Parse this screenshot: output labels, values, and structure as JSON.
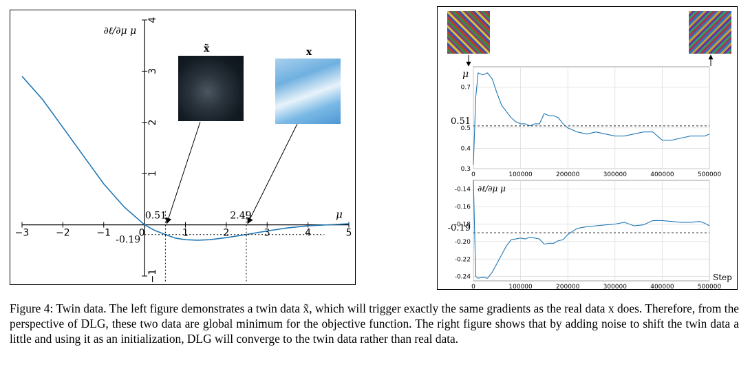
{
  "left_figure": {
    "ylabel": "∂ℓ/∂μ μ",
    "xlabel": "μ",
    "annotations": {
      "x1": "0.51",
      "x2": "2.49",
      "ymin": "-0.19"
    },
    "thumb_twin_label": "x̃",
    "thumb_real_label": "x",
    "x_ticks": [
      "−3",
      "−2",
      "−1",
      "0",
      "1",
      "2",
      "3",
      "4",
      "5"
    ],
    "y_ticks": [
      "−1",
      "1",
      "2",
      "3",
      "4"
    ]
  },
  "right_figure": {
    "top_plot": {
      "ylabel": "μ",
      "hline_label": "0.51",
      "y_ticks": [
        "0.3",
        "0.4",
        "0.5",
        "0.7"
      ],
      "x_ticks": [
        "0",
        "100000",
        "200000",
        "300000",
        "400000",
        "500000"
      ]
    },
    "bottom_plot": {
      "ylabel": "∂ℓ/∂μ μ",
      "hline_label": "-0.19",
      "y_ticks": [
        "-0.14",
        "-0.16",
        "-0.18",
        "-0.20",
        "-0.22",
        "-0.24"
      ],
      "x_ticks": [
        "0",
        "100000",
        "200000",
        "300000",
        "400000",
        "500000"
      ],
      "xlabel": "Step"
    }
  },
  "caption": {
    "text": "Figure 4: Twin data. The left figure demonstrates a twin data x̃, which will trigger exactly the same gradients as the real data x does. Therefore, from the perspective of DLG, these two data are global minimum for the objective function. The right figure shows that by adding noise to shift the twin data a little and using it as an initialization, DLG will converge to the twin data rather than real data."
  },
  "chart_data": [
    {
      "type": "line",
      "xlabel": "μ",
      "ylabel": "∂ℓ/∂μ μ",
      "xlim": [
        -3,
        5
      ],
      "ylim": [
        -1,
        4
      ],
      "grid": false,
      "series": [
        {
          "x": [
            -3,
            -2.5,
            -2,
            -1.5,
            -1,
            -0.5,
            0,
            0.25,
            0.51,
            0.75,
            1,
            1.3,
            1.6,
            2,
            2.49,
            3,
            3.5,
            4,
            4.5,
            5
          ],
          "values": [
            2.9,
            2.45,
            1.9,
            1.35,
            0.8,
            0.35,
            0,
            -0.11,
            -0.19,
            -0.26,
            -0.29,
            -0.3,
            -0.29,
            -0.25,
            -0.19,
            -0.12,
            -0.06,
            -0.02,
            0.0,
            0.02
          ],
          "color": "#1f77b4"
        }
      ],
      "hlines": [
        -0.19
      ],
      "vlines": [
        0.51,
        2.49
      ]
    },
    {
      "type": "line",
      "ylabel": "μ",
      "xlim": [
        0,
        500000
      ],
      "ylim": [
        0.3,
        0.8
      ],
      "grid": true,
      "hline": 0.51,
      "series": [
        {
          "x": [
            0,
            5000,
            10000,
            20000,
            30000,
            40000,
            50000,
            60000,
            70000,
            80000,
            90000,
            100000,
            110000,
            120000,
            130000,
            140000,
            150000,
            160000,
            170000,
            180000,
            190000,
            200000,
            210000,
            220000,
            240000,
            260000,
            280000,
            300000,
            320000,
            340000,
            360000,
            380000,
            400000,
            420000,
            440000,
            460000,
            480000,
            490000,
            500000
          ],
          "values": [
            0.32,
            0.65,
            0.77,
            0.76,
            0.77,
            0.74,
            0.67,
            0.61,
            0.58,
            0.55,
            0.53,
            0.52,
            0.52,
            0.51,
            0.52,
            0.52,
            0.57,
            0.56,
            0.56,
            0.55,
            0.52,
            0.5,
            0.49,
            0.48,
            0.47,
            0.48,
            0.47,
            0.46,
            0.46,
            0.47,
            0.48,
            0.48,
            0.44,
            0.44,
            0.45,
            0.46,
            0.46,
            0.46,
            0.47
          ],
          "color": "#1f77b4"
        }
      ]
    },
    {
      "type": "line",
      "ylabel": "∂ℓ/∂μ μ",
      "xlabel": "Step",
      "xlim": [
        0,
        500000
      ],
      "ylim": [
        -0.245,
        -0.13
      ],
      "grid": true,
      "hline": -0.19,
      "series": [
        {
          "x": [
            0,
            5000,
            10000,
            20000,
            30000,
            40000,
            50000,
            60000,
            70000,
            80000,
            90000,
            100000,
            110000,
            120000,
            130000,
            140000,
            150000,
            160000,
            170000,
            180000,
            190000,
            200000,
            220000,
            240000,
            260000,
            280000,
            300000,
            320000,
            340000,
            360000,
            380000,
            400000,
            420000,
            440000,
            460000,
            480000,
            490000,
            500000
          ],
          "values": [
            -0.13,
            -0.24,
            -0.242,
            -0.241,
            -0.242,
            -0.235,
            -0.225,
            -0.215,
            -0.205,
            -0.198,
            -0.197,
            -0.196,
            -0.197,
            -0.195,
            -0.196,
            -0.197,
            -0.203,
            -0.202,
            -0.202,
            -0.199,
            -0.198,
            -0.192,
            -0.185,
            -0.183,
            -0.182,
            -0.181,
            -0.18,
            -0.178,
            -0.182,
            -0.181,
            -0.176,
            -0.176,
            -0.177,
            -0.178,
            -0.178,
            -0.177,
            -0.179,
            -0.182
          ],
          "color": "#1f77b4"
        }
      ]
    }
  ]
}
